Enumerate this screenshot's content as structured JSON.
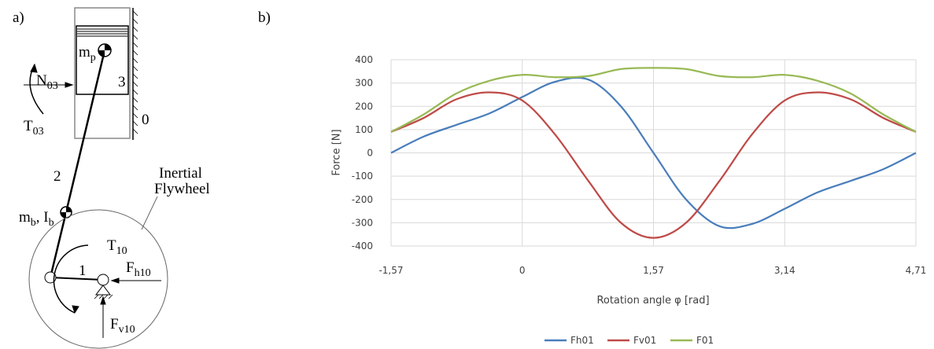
{
  "panels": [
    "a)",
    "b)"
  ],
  "diagram": {
    "labels": [
      {
        "main": "N",
        "sub": "03"
      },
      {
        "main": "T",
        "sub": "03"
      },
      {
        "main": "m",
        "sub": "p"
      },
      {
        "main": "3"
      },
      {
        "main": "0"
      },
      {
        "main": "2"
      },
      {
        "main": "m",
        "sub": "b"
      },
      {
        "main": ", I",
        "sub": "b"
      },
      {
        "main": "Inertial"
      },
      {
        "main": "Flywheel"
      },
      {
        "main": "T",
        "sub": "10"
      },
      {
        "main": "1"
      },
      {
        "main": "F",
        "sub": "h10"
      },
      {
        "main": "F",
        "sub": "v10"
      }
    ]
  },
  "chart_data": {
    "type": "line",
    "xlabel": "Rotation angle φ [rad]",
    "ylabel": "Force [N]",
    "x": [
      -1.57,
      -1.18,
      -0.79,
      -0.39,
      0,
      0.39,
      0.79,
      1.18,
      1.57,
      1.96,
      2.36,
      2.75,
      3.14,
      3.53,
      3.93,
      4.32,
      4.71
    ],
    "series": [
      {
        "name": "Fh01",
        "color": "#4a7ebb",
        "values": [
          0,
          70,
          120,
          170,
          240,
          305,
          315,
          200,
          0,
          -200,
          -315,
          -305,
          -240,
          -170,
          -120,
          -70,
          0
        ]
      },
      {
        "name": "Fv01",
        "color": "#be4b48",
        "values": [
          90,
          150,
          230,
          260,
          225,
          80,
          -120,
          -300,
          -365,
          -300,
          -120,
          80,
          225,
          260,
          230,
          150,
          90
        ]
      },
      {
        "name": "F01",
        "color": "#98b954",
        "values": [
          90,
          165,
          255,
          310,
          335,
          325,
          330,
          360,
          365,
          360,
          330,
          325,
          335,
          310,
          255,
          165,
          90
        ]
      }
    ],
    "xlim": [
      -1.57,
      4.71
    ],
    "xticks": [
      {
        "value": -1.57,
        "label": "-1,57"
      },
      0,
      {
        "value": 1.57,
        "label": "1,57"
      },
      {
        "value": 3.14,
        "label": "3,14"
      },
      {
        "value": 4.71,
        "label": "4,71"
      }
    ],
    "ylim": [
      -400,
      400
    ],
    "yticks": [
      -400,
      -300,
      -200,
      -100,
      0,
      100,
      200,
      300,
      400
    ],
    "grid": true,
    "legend": "bottom"
  }
}
